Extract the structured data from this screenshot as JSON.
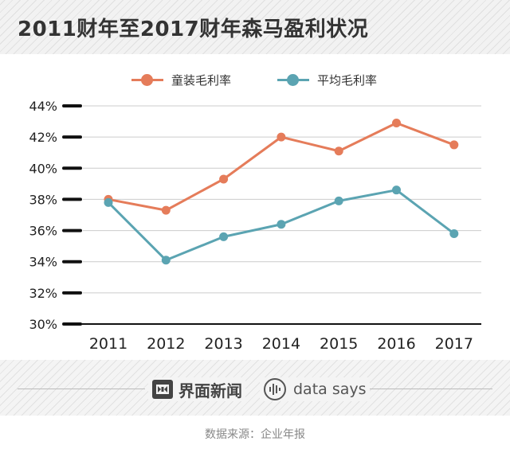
{
  "header": {
    "title": "2011财年至2017财年森马盈利状况"
  },
  "legend": [
    {
      "label": "童装毛利率",
      "color": "#e57c5a"
    },
    {
      "label": "平均毛利率",
      "color": "#5ba4b2"
    }
  ],
  "chart_data": {
    "type": "line",
    "title": "2011财年至2017财年森马盈利状况",
    "xlabel": "",
    "ylabel": "",
    "categories": [
      "2011",
      "2012",
      "2013",
      "2014",
      "2015",
      "2016",
      "2017"
    ],
    "ylim": [
      30,
      44
    ],
    "yticks": [
      30,
      32,
      34,
      36,
      38,
      40,
      42,
      44
    ],
    "ytick_labels": [
      "30%",
      "32%",
      "34%",
      "36%",
      "38%",
      "40%",
      "42%",
      "44%"
    ],
    "grid": true,
    "legend_position": "top",
    "series": [
      {
        "name": "童装毛利率",
        "color": "#e57c5a",
        "values": [
          38.0,
          37.3,
          39.3,
          42.0,
          41.1,
          42.9,
          41.5
        ]
      },
      {
        "name": "平均毛利率",
        "color": "#5ba4b2",
        "values": [
          37.8,
          34.1,
          35.6,
          36.4,
          37.9,
          38.6,
          35.8
        ]
      }
    ]
  },
  "footer": {
    "brand_label": "界面新闻",
    "brand_icon": "jiemian-logo-icon",
    "datasays_label": "data says",
    "datasays_icon": "data-says-logo-icon",
    "source": "数据来源：企业年报"
  }
}
